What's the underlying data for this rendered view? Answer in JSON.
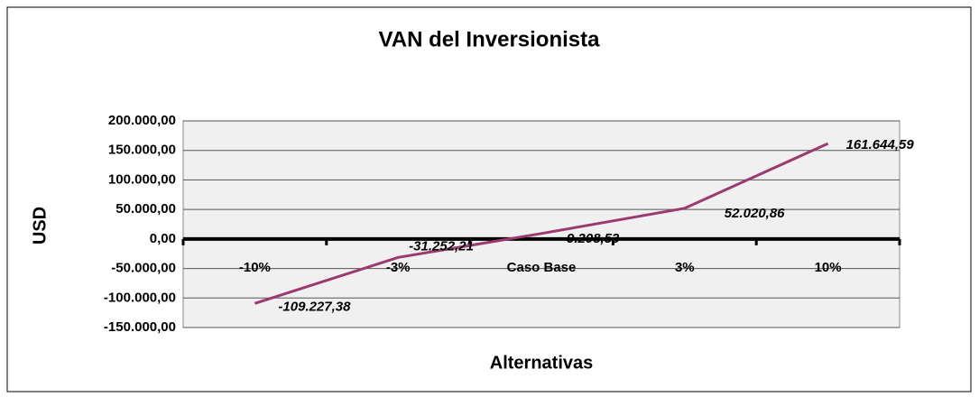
{
  "chart_data": {
    "type": "line",
    "title": "VAN del Inversionista",
    "x_label": "Alternativas",
    "y_label": "USD",
    "categories": [
      "-10%",
      "-3%",
      "Caso Base",
      "3%",
      "10%"
    ],
    "series": [
      {
        "name": "VAN",
        "color": "#9b3a6e",
        "values": [
          -109227.38,
          -31252.21,
          9208.53,
          52020.86,
          161644.59
        ],
        "value_labels": [
          "-109.227,38",
          "-31.252,21",
          "9.208,53",
          "52.020,86",
          "161.644,59"
        ]
      }
    ],
    "ylim": [
      -150000,
      200000
    ],
    "yticks": [
      {
        "value": -150000,
        "label": "-150.000,00"
      },
      {
        "value": -100000,
        "label": "-100.000,00"
      },
      {
        "value": -50000,
        "label": "-50.000,00"
      },
      {
        "value": 0,
        "label": "0,00"
      },
      {
        "value": 50000,
        "label": "50.000,00"
      },
      {
        "value": 100000,
        "label": "100.000,00"
      },
      {
        "value": 150000,
        "label": "150.000,00"
      },
      {
        "value": 200000,
        "label": "200.000,00"
      }
    ],
    "grid": true
  }
}
